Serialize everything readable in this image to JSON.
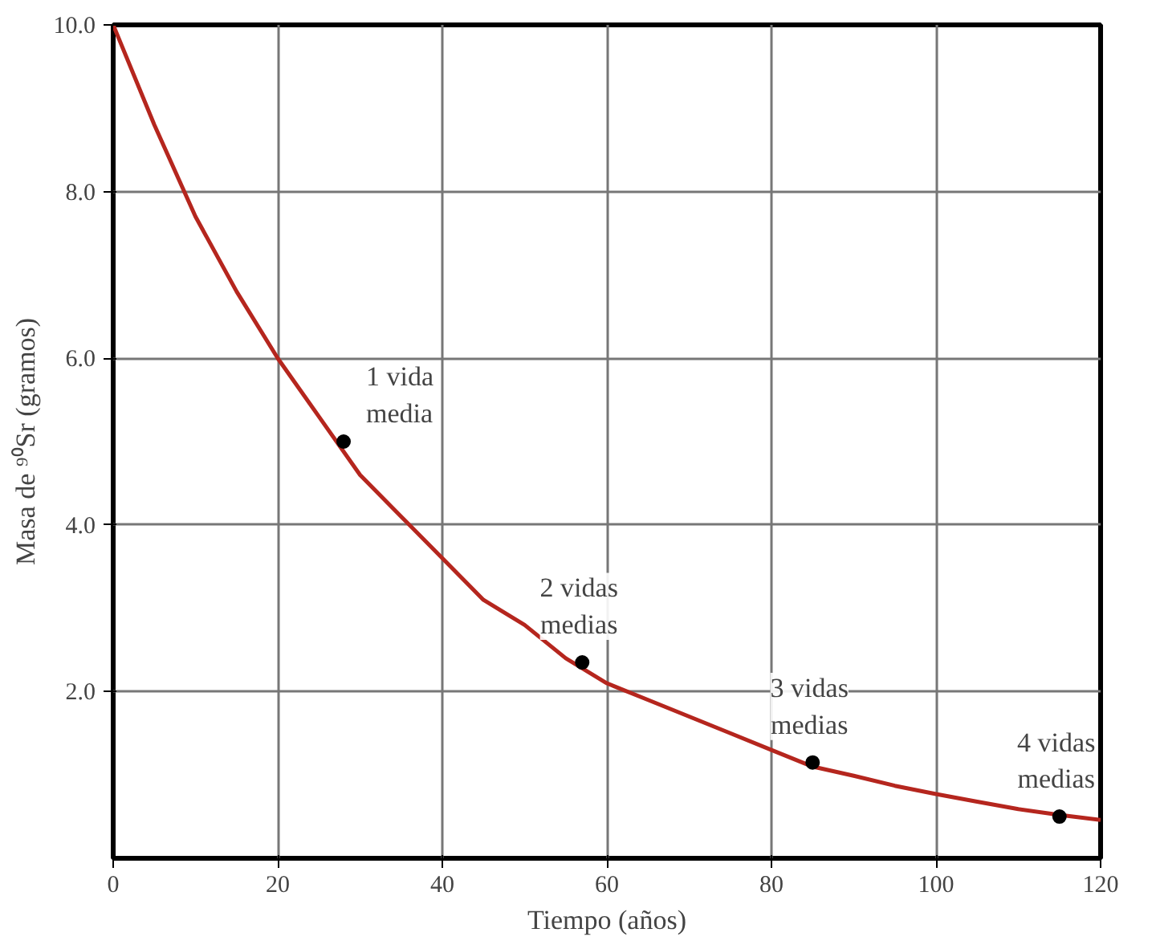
{
  "chart_data": {
    "type": "line",
    "xlabel": "Tiempo (años)",
    "ylabel": "Masa de ⁹⁰Sr (gramos)",
    "xlim": [
      0,
      120
    ],
    "ylim": [
      0,
      10
    ],
    "xticks": [
      0,
      20,
      40,
      60,
      80,
      100,
      120
    ],
    "yticks": [
      {
        "value": 2,
        "label": "2.0"
      },
      {
        "value": 4,
        "label": "4.0"
      },
      {
        "value": 6,
        "label": "6.0"
      },
      {
        "value": 8,
        "label": "8.0"
      },
      {
        "value": 10,
        "label": "10.0"
      }
    ],
    "grid": true,
    "series": [
      {
        "color": "#b5261e",
        "marker": "none",
        "x": [
          0,
          5,
          10,
          15,
          20,
          25,
          30,
          35,
          40,
          45,
          50,
          55,
          60,
          65,
          70,
          75,
          80,
          85,
          90,
          95,
          100,
          105,
          110,
          115,
          120
        ],
        "values": [
          10,
          8.8,
          7.7,
          6.8,
          6.0,
          5.3,
          4.6,
          4.1,
          3.6,
          3.1,
          2.8,
          2.4,
          2.1,
          1.9,
          1.7,
          1.5,
          1.3,
          1.1,
          0.99,
          0.87,
          0.77,
          0.68,
          0.59,
          0.52,
          0.46
        ]
      },
      {
        "type": "scatter",
        "color": "#000000",
        "marker": "circle",
        "x": [
          28,
          57,
          85,
          115
        ],
        "values": [
          5.0,
          2.35,
          1.15,
          0.5
        ]
      }
    ],
    "annotations": [
      {
        "text": "1 vida\nmedia",
        "x": 28,
        "y": 5.0
      },
      {
        "text": "2 vidas\nmedias",
        "x": 57,
        "y": 2.35
      },
      {
        "text": "3 vidas\nmedias",
        "x": 85,
        "y": 1.15
      },
      {
        "text": "4 vidas\nmedias",
        "x": 115,
        "y": 0.5
      }
    ]
  }
}
